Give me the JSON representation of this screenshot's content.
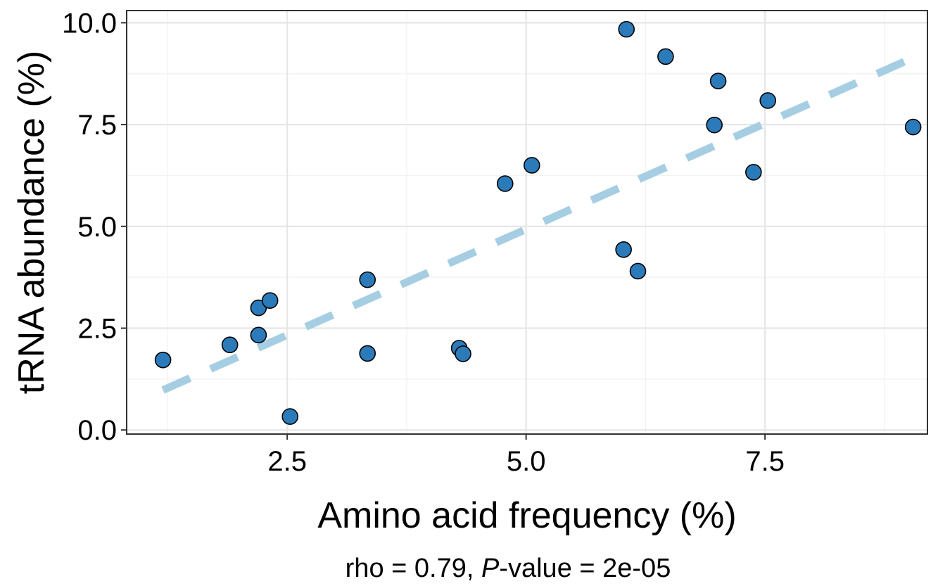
{
  "chart_data": {
    "type": "scatter",
    "xlabel": "Amino acid frequency (%)",
    "ylabel": "tRNA abundance (%)",
    "caption": {
      "prefix": "rho = 0.79, ",
      "italic": "P",
      "suffix": "-value = 2e-05"
    },
    "xlim": [
      0.82,
      9.2
    ],
    "ylim": [
      -0.1,
      10.3
    ],
    "x_ticks": [
      2.5,
      5.0,
      7.5
    ],
    "x_tick_labels": [
      "2.5",
      "5.0",
      "7.5"
    ],
    "y_ticks": [
      0.0,
      2.5,
      5.0,
      7.5,
      10.0
    ],
    "y_tick_labels": [
      "0.0",
      "2.5",
      "5.0",
      "7.5",
      "10.0"
    ],
    "grid": true,
    "points": [
      {
        "x": 1.2,
        "y": 1.72
      },
      {
        "x": 1.9,
        "y": 2.09
      },
      {
        "x": 2.2,
        "y": 2.33
      },
      {
        "x": 2.2,
        "y": 3.0
      },
      {
        "x": 2.32,
        "y": 3.18
      },
      {
        "x": 2.53,
        "y": 0.33
      },
      {
        "x": 3.34,
        "y": 1.88
      },
      {
        "x": 3.34,
        "y": 3.69
      },
      {
        "x": 4.3,
        "y": 2.01
      },
      {
        "x": 4.34,
        "y": 1.87
      },
      {
        "x": 4.78,
        "y": 6.05
      },
      {
        "x": 5.06,
        "y": 6.5
      },
      {
        "x": 6.02,
        "y": 4.43
      },
      {
        "x": 6.05,
        "y": 9.84
      },
      {
        "x": 6.17,
        "y": 3.9
      },
      {
        "x": 6.46,
        "y": 9.17
      },
      {
        "x": 6.97,
        "y": 7.49
      },
      {
        "x": 7.01,
        "y": 8.57
      },
      {
        "x": 7.38,
        "y": 6.33
      },
      {
        "x": 7.53,
        "y": 8.09
      },
      {
        "x": 9.05,
        "y": 7.44
      }
    ],
    "fit_line": {
      "x": [
        1.2,
        9.05
      ],
      "y": [
        0.98,
        9.14
      ]
    },
    "colors": {
      "point_fill": "#2b7bba",
      "point_stroke": "#000000",
      "fit_line": "#a6cee3",
      "grid_major": "#e6e6e6",
      "grid_minor": "#f2f2f2",
      "panel_border": "#333333"
    }
  }
}
